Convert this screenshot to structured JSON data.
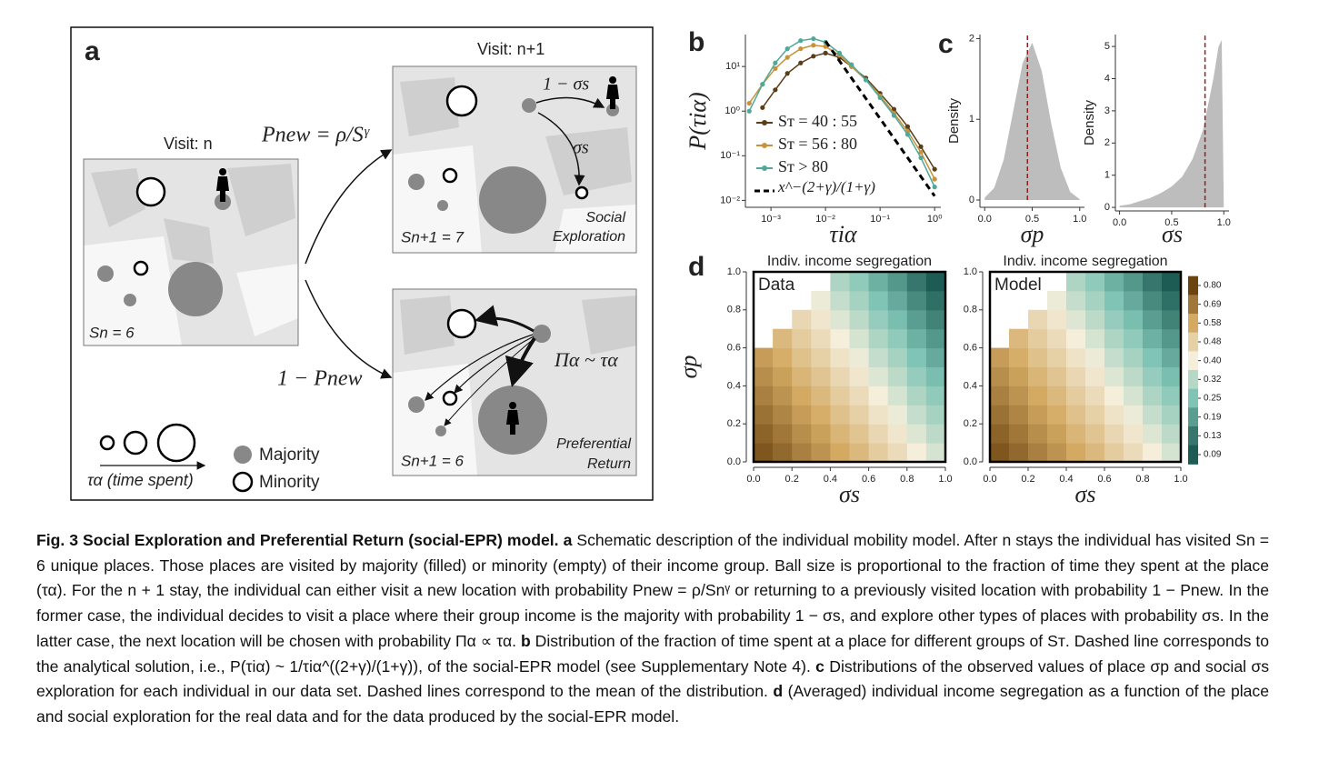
{
  "panel_a": {
    "label": "a",
    "visit_n": "Visit: n",
    "visit_n1": "Visit: n+1",
    "p_new": "Pnew = ρ/Sᵞ",
    "one_minus_p_new": "1 − Pnew",
    "one_minus_sigma_s": "1 − σs",
    "sigma_s": "σs",
    "social": "Social",
    "exploration": "Exploration",
    "s_n1_top": "Sn+1 = 7",
    "s_n": "Sn = 6",
    "pi": "Πα ~ τα",
    "preferential": "Preferential",
    "return": "Return",
    "s_n1_bottom": "Sn+1 = 6",
    "tau": "τα (time spent)",
    "majority": "Majority",
    "minority": "Minority"
  },
  "chart_data": [
    {
      "type": "line",
      "panel_label": "b",
      "xlabel": "τiα",
      "ylabel": "P(τiα)",
      "xlog": true,
      "ylog": true,
      "xlim": [
        0.00034,
        1.3
      ],
      "ylim": [
        0.007,
        52
      ],
      "xticks": [
        {
          "value": 0.001,
          "label": "10⁻³"
        },
        {
          "value": 0.01,
          "label": "10⁻²"
        },
        {
          "value": 0.1,
          "label": "10⁻¹"
        },
        {
          "value": 1,
          "label": "10⁰"
        }
      ],
      "yticks": [
        {
          "value": 0.01,
          "label": "10⁻²"
        },
        {
          "value": 0.1,
          "label": "10⁻¹"
        },
        {
          "value": 1,
          "label": "10⁰"
        },
        {
          "value": 10,
          "label": "10¹"
        }
      ],
      "x": [
        0.0004,
        0.0007,
        0.0012,
        0.002,
        0.0035,
        0.006,
        0.01,
        0.018,
        0.03,
        0.055,
        0.1,
        0.18,
        0.32,
        0.56,
        1.0
      ],
      "series": [
        {
          "name": "Sᴛ = 40 : 55",
          "color": "#5a3e1b",
          "values": [
            null,
            1.2,
            3,
            7,
            12,
            17,
            20,
            16,
            10,
            5.5,
            2.5,
            1.1,
            0.45,
            0.16,
            0.05
          ]
        },
        {
          "name": "Sᴛ = 56 : 80",
          "color": "#c8923a",
          "values": [
            1.5,
            4,
            9,
            16,
            25,
            30,
            28,
            18,
            10,
            5,
            2.2,
            0.9,
            0.35,
            0.12,
            0.03
          ]
        },
        {
          "name": "Sᴛ > 80",
          "color": "#4fa89a",
          "values": [
            1,
            4,
            12,
            25,
            38,
            42,
            35,
            20,
            11,
            5,
            2,
            0.8,
            0.3,
            0.09,
            0.02
          ]
        }
      ],
      "reference": {
        "name": "x^−(2+γ)/(1+γ)",
        "color": "#000000",
        "x": [
          0.01,
          1
        ],
        "values": [
          37,
          0.0125
        ]
      }
    },
    {
      "type": "area",
      "panel_label": "c",
      "xlabel": "σp",
      "ylabel": "Density",
      "color": "#bdbdbd",
      "mean_color": "#9b1c1c",
      "xlim": [
        -0.05,
        1.05
      ],
      "ylim": [
        -0.09,
        2.05
      ],
      "xticks": [
        {
          "value": 0,
          "label": "0.0"
        },
        0.5,
        {
          "value": 1,
          "label": "1.0"
        }
      ],
      "yticks": [
        0,
        1,
        2
      ],
      "x": [
        0,
        0.1,
        0.2,
        0.3,
        0.4,
        0.5,
        0.6,
        0.7,
        0.8,
        0.9,
        1
      ],
      "values": [
        0.03,
        0.15,
        0.5,
        1.1,
        1.7,
        1.95,
        1.6,
        0.95,
        0.4,
        0.1,
        0.01
      ],
      "mean": 0.45
    },
    {
      "type": "area",
      "xlabel": "σs",
      "ylabel": "Density",
      "color": "#bdbdbd",
      "mean_color": "#9b1c1c",
      "xlim": [
        -0.04,
        1.05
      ],
      "ylim": [
        -0.11,
        5.37
      ],
      "xticks": [
        {
          "value": 0,
          "label": "0.0"
        },
        0.5,
        {
          "value": 1,
          "label": "1.0"
        }
      ],
      "yticks": [
        0,
        1,
        2,
        3,
        4,
        5
      ],
      "x": [
        0,
        0.1,
        0.2,
        0.3,
        0.4,
        0.5,
        0.6,
        0.7,
        0.8,
        0.9,
        0.95,
        0.98,
        1.0
      ],
      "values": [
        0.05,
        0.1,
        0.2,
        0.3,
        0.45,
        0.65,
        0.95,
        1.5,
        2.4,
        4.0,
        5.0,
        5.2,
        0
      ],
      "mean": 0.82
    },
    {
      "type": "heatmap",
      "panel_label": "d",
      "title": "Indiv. income segregation",
      "inset": "Data",
      "xlabel": "σs",
      "ylabel": "σp",
      "xlim": [
        0,
        1
      ],
      "ylim": [
        0,
        1
      ],
      "xticks": [
        {
          "value": 0,
          "label": "0.0"
        },
        0.2,
        0.4,
        0.6,
        0.8,
        {
          "value": 1,
          "label": "1.0"
        }
      ],
      "yticks": [
        {
          "value": 0,
          "label": "0.0"
        },
        0.2,
        0.4,
        0.6,
        0.8,
        {
          "value": 1,
          "label": "1.0"
        }
      ],
      "values": [
        [
          0.76,
          0.72,
          0.67,
          0.63,
          0.58,
          0.54,
          0.49,
          0.45,
          0.4,
          0.36
        ],
        [
          0.73,
          0.69,
          0.64,
          0.6,
          0.55,
          0.51,
          0.46,
          0.42,
          0.37,
          0.33
        ],
        [
          0.7,
          0.66,
          0.61,
          0.57,
          0.52,
          0.48,
          0.43,
          0.39,
          0.34,
          0.3
        ],
        [
          0.67,
          0.63,
          0.58,
          0.54,
          0.49,
          0.45,
          0.4,
          0.36,
          0.31,
          0.27
        ],
        [
          0.64,
          0.6,
          0.55,
          0.51,
          0.46,
          0.42,
          0.37,
          0.33,
          0.28,
          0.24
        ],
        [
          0.61,
          0.57,
          0.52,
          0.48,
          0.43,
          0.39,
          0.34,
          0.3,
          0.25,
          0.21
        ],
        [
          null,
          0.54,
          0.49,
          0.45,
          0.4,
          0.36,
          0.31,
          0.27,
          0.22,
          0.18
        ],
        [
          null,
          null,
          0.46,
          0.42,
          0.37,
          0.33,
          0.28,
          0.24,
          0.19,
          0.15
        ],
        [
          null,
          null,
          null,
          0.39,
          0.34,
          0.3,
          0.25,
          0.21,
          0.16,
          0.12
        ],
        [
          null,
          null,
          null,
          null,
          0.31,
          0.27,
          0.22,
          0.18,
          0.13,
          0.09
        ]
      ]
    },
    {
      "type": "heatmap",
      "title": "Indiv. income segregation",
      "inset": "Model",
      "xlabel": "σs",
      "xlim": [
        0,
        1
      ],
      "ylim": [
        0,
        1
      ],
      "xticks": [
        {
          "value": 0,
          "label": "0.0"
        },
        0.2,
        0.4,
        0.6,
        0.8,
        {
          "value": 1,
          "label": "1.0"
        }
      ],
      "yticks": [
        {
          "value": 0,
          "label": "0.0"
        },
        0.2,
        0.4,
        0.6,
        0.8,
        {
          "value": 1,
          "label": "1.0"
        }
      ],
      "values": [
        [
          0.76,
          0.72,
          0.67,
          0.63,
          0.58,
          0.54,
          0.49,
          0.45,
          0.4,
          0.36
        ],
        [
          0.73,
          0.69,
          0.64,
          0.6,
          0.55,
          0.51,
          0.46,
          0.42,
          0.37,
          0.33
        ],
        [
          0.7,
          0.66,
          0.61,
          0.57,
          0.52,
          0.48,
          0.43,
          0.39,
          0.34,
          0.3
        ],
        [
          0.67,
          0.63,
          0.58,
          0.54,
          0.49,
          0.45,
          0.4,
          0.36,
          0.31,
          0.27
        ],
        [
          0.64,
          0.6,
          0.55,
          0.51,
          0.46,
          0.42,
          0.37,
          0.33,
          0.28,
          0.24
        ],
        [
          0.61,
          0.57,
          0.52,
          0.48,
          0.43,
          0.39,
          0.34,
          0.3,
          0.25,
          0.21
        ],
        [
          null,
          0.54,
          0.49,
          0.45,
          0.4,
          0.36,
          0.31,
          0.27,
          0.22,
          0.18
        ],
        [
          null,
          null,
          0.46,
          0.42,
          0.37,
          0.33,
          0.28,
          0.24,
          0.19,
          0.15
        ],
        [
          null,
          null,
          null,
          0.39,
          0.34,
          0.3,
          0.25,
          0.21,
          0.16,
          0.12
        ],
        [
          null,
          null,
          null,
          null,
          0.31,
          0.27,
          0.22,
          0.18,
          0.13,
          0.09
        ]
      ],
      "colorscale": [
        [
          0.09,
          "#1d5c54"
        ],
        [
          0.25,
          "#7fc4b5"
        ],
        [
          0.4,
          "#f4eedb"
        ],
        [
          0.58,
          "#d4aa63"
        ],
        [
          0.8,
          "#6b430f"
        ]
      ],
      "colorbar": [
        {
          "value": 0.8,
          "label": "0.80"
        },
        0.69,
        0.58,
        0.48,
        {
          "value": 0.4,
          "label": "0.40"
        },
        0.32,
        0.25,
        0.19,
        0.13,
        0.09
      ]
    }
  ],
  "caption": {
    "title": "Fig. 3 Social Exploration and Preferential Return (social-EPR) model.",
    "parts": [
      {
        "label": "a",
        "text": "Schematic description of the individual mobility model. After n stays the individual has visited Sn = 6 unique places. Those places are visited by majority (filled) or minority (empty) of their income group. Ball size is proportional to the fraction of time they spent at the place (τα). For the n + 1 stay, the individual can either visit a new location with probability Pnew = ρ/Snᵞ or returning to a previously visited location with probability 1 − Pnew. In the former case, the individual decides to visit a place where their group income is the majority with probability 1 − σs, and explore other types of places with probability σs. In the latter case, the next location will be chosen with probability Πα ∝ τα."
      },
      {
        "label": "b",
        "text": "Distribution of the fraction of time spent at a place for different groups of Sᴛ. Dashed line corresponds to the analytical solution, i.e., P(τiα) ~ 1/τiα^((2+γ)/(1+γ)), of the social-EPR model (see Supplementary Note 4)."
      },
      {
        "label": "c",
        "text": "Distributions of the observed values of place σp and social σs exploration for each individual in our data set. Dashed lines correspond to the mean of the distribution."
      },
      {
        "label": "d",
        "text": "(Averaged) individual income segregation as a function of the place and social exploration for the real data and for the data produced by the social-EPR model."
      }
    ]
  }
}
